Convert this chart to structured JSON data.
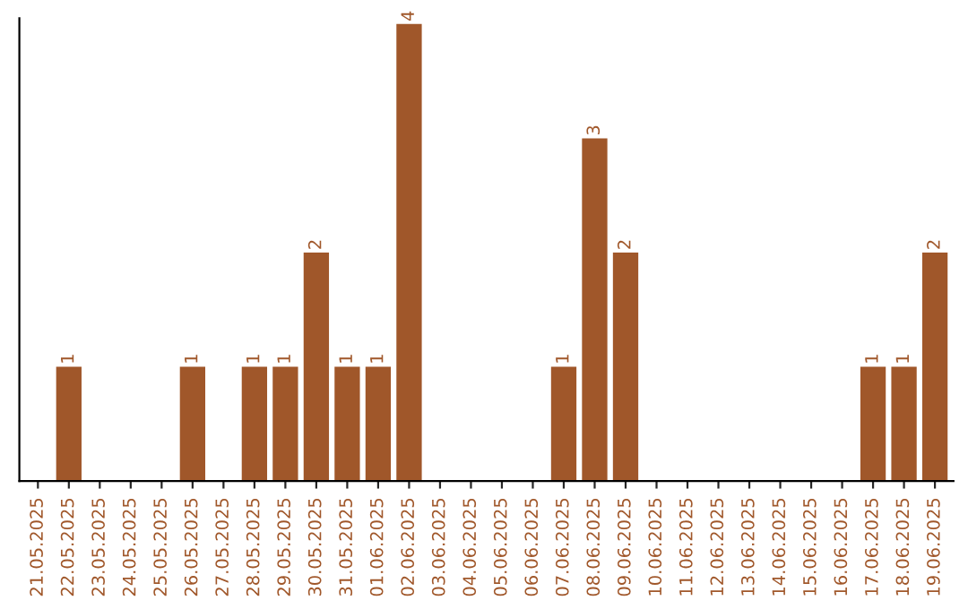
{
  "chart_data": {
    "type": "bar",
    "categories": [
      "21.05.2025",
      "22.05.2025",
      "23.05.2025",
      "24.05.2025",
      "25.05.2025",
      "26.05.2025",
      "27.05.2025",
      "28.05.2025",
      "29.05.2025",
      "30.05.2025",
      "31.05.2025",
      "01.06.2025",
      "02.06.2025",
      "03.06.2025",
      "04.06.2025",
      "05.06.2025",
      "06.06.2025",
      "07.06.2025",
      "08.06.2025",
      "09.06.2025",
      "10.06.2025",
      "11.06.2025",
      "12.06.2025",
      "13.06.2025",
      "14.06.2025",
      "15.06.2025",
      "16.06.2025",
      "17.06.2025",
      "18.06.2025",
      "19.06.2025"
    ],
    "values": [
      0,
      1,
      0,
      0,
      0,
      1,
      0,
      1,
      1,
      2,
      1,
      1,
      4,
      0,
      0,
      0,
      0,
      1,
      3,
      2,
      0,
      0,
      0,
      0,
      0,
      0,
      0,
      1,
      1,
      2
    ],
    "value_labels": [
      null,
      "1",
      null,
      null,
      null,
      "1",
      null,
      "1",
      "1",
      "2",
      "1",
      "1",
      "4",
      null,
      null,
      null,
      null,
      "1",
      "3",
      "2",
      null,
      null,
      null,
      null,
      null,
      null,
      null,
      "1",
      "1",
      "2"
    ],
    "color": "#a0572a",
    "ylim": [
      0,
      4.05
    ],
    "tick_labels": "x",
    "grid": false
  }
}
